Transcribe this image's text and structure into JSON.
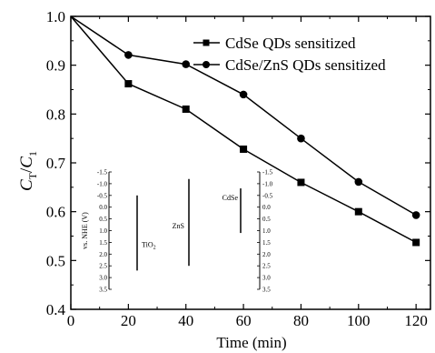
{
  "chart_data": {
    "type": "line",
    "xlabel": "Time (min)",
    "ylabel_main": "C",
    "ylabel_sub1": "T",
    "ylabel_sep": "/",
    "ylabel_sub2": "1",
    "xlim": [
      0,
      125
    ],
    "ylim": [
      0.4,
      1.0
    ],
    "x_ticks": [
      "0",
      "20",
      "40",
      "60",
      "80",
      "100",
      "120"
    ],
    "y_ticks": [
      "0.4",
      "0.5",
      "0.6",
      "0.7",
      "0.8",
      "0.9",
      "1.0"
    ],
    "x_tick_values": [
      0,
      20,
      40,
      60,
      80,
      100,
      120
    ],
    "y_tick_values": [
      0.4,
      0.5,
      0.6,
      0.7,
      0.8,
      0.9,
      1.0
    ],
    "legend_position": "top-right",
    "series": [
      {
        "name": "CdSe QDs sensitized",
        "marker": "square",
        "x": [
          0,
          20,
          40,
          60,
          80,
          100,
          120
        ],
        "y": [
          1.0,
          0.862,
          0.81,
          0.728,
          0.66,
          0.6,
          0.537
        ]
      },
      {
        "name": "CdSe/ZnS QDs sensitized",
        "marker": "circle",
        "x": [
          0,
          20,
          40,
          60,
          80,
          100,
          120
        ],
        "y": [
          1.0,
          0.921,
          0.902,
          0.84,
          0.75,
          0.661,
          0.593
        ]
      }
    ],
    "color": "#000000"
  },
  "inset": {
    "ylabel": "vs. NHE (V)",
    "ticks": [
      "-1.5",
      "-1.0",
      "-0.5",
      "0.0",
      "0.5",
      "1.0",
      "1.5",
      "2.0",
      "2.5",
      "3.0",
      "3.5"
    ],
    "tick_values": [
      -1.5,
      -1.0,
      -0.5,
      0.0,
      0.5,
      1.0,
      1.5,
      2.0,
      2.5,
      3.0,
      3.5
    ],
    "materials": [
      {
        "label_main": "TiO",
        "label_sub": "2",
        "from": -0.5,
        "to": 2.7
      },
      {
        "label_main": "ZnS",
        "label_sub": "",
        "from": -1.2,
        "to": 2.5
      },
      {
        "label_main": "CdSe",
        "label_sub": "",
        "from": -0.8,
        "to": 1.1
      }
    ]
  }
}
